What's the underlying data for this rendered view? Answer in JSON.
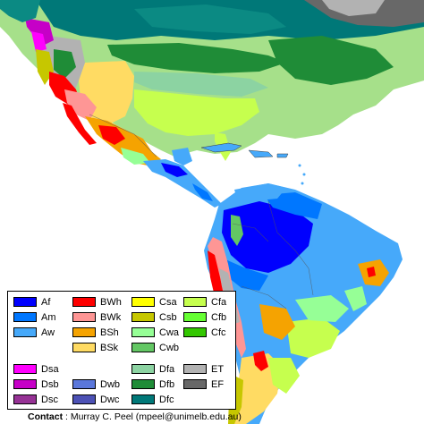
{
  "colors": {
    "ocean": "#ffffff",
    "land_default": "#a6e08a",
    "coast": "#3a3a3a"
  },
  "legend": {
    "items": [
      {
        "code": "Af",
        "color": "#0000fe"
      },
      {
        "code": "Am",
        "color": "#0077ff"
      },
      {
        "code": "Aw",
        "color": "#46a9fa"
      },
      {
        "code": "BWh",
        "color": "#fe0000"
      },
      {
        "code": "BWk",
        "color": "#fe9695"
      },
      {
        "code": "BSh",
        "color": "#f5a301"
      },
      {
        "code": "BSk",
        "color": "#ffdb63"
      },
      {
        "code": "Csa",
        "color": "#ffff00"
      },
      {
        "code": "Csb",
        "color": "#c6c700"
      },
      {
        "code": "Cwa",
        "color": "#96ff96"
      },
      {
        "code": "Cwb",
        "color": "#63c764"
      },
      {
        "code": "Cfa",
        "color": "#c6ff4e"
      },
      {
        "code": "Cfb",
        "color": "#66ff33"
      },
      {
        "code": "Cfc",
        "color": "#33c701"
      },
      {
        "code": "Dsa",
        "color": "#ff00fe"
      },
      {
        "code": "Dsb",
        "color": "#c600c7"
      },
      {
        "code": "Dsc",
        "color": "#963295"
      },
      {
        "code": "Dwb",
        "color": "#5a77db"
      },
      {
        "code": "Dwc",
        "color": "#4c51b5"
      },
      {
        "code": "Dfa",
        "color": "#8cd3a2"
      },
      {
        "code": "Dfb",
        "color": "#1f8c37"
      },
      {
        "code": "Dfc",
        "color": "#007878"
      },
      {
        "code": "ET",
        "color": "#b2b2b2"
      },
      {
        "code": "EF",
        "color": "#686868"
      }
    ]
  },
  "contact": {
    "label": "Contact",
    "text": " : Murray C. Peel (mpeel@unimelb.edu.au)"
  }
}
